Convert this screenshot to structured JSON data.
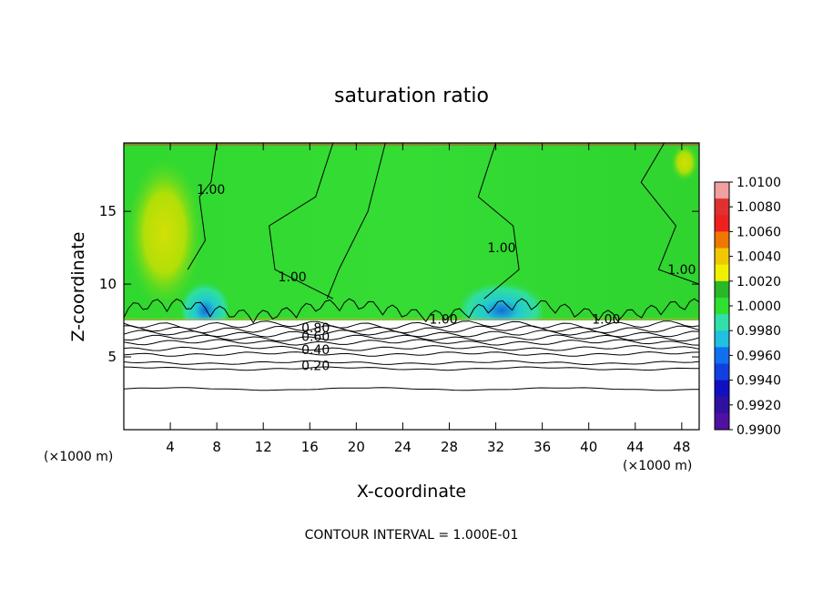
{
  "chart_data": {
    "type": "heatmap",
    "title": "saturation ratio",
    "xlabel": "X-coordinate",
    "ylabel": "Z-coordinate",
    "x_unit": "(×1000 m)",
    "x_unit_right": "(×1000 m)",
    "footer": "CONTOUR INTERVAL = 1.000E-01",
    "xlim": [
      0,
      49.5
    ],
    "ylim": [
      0,
      19.7
    ],
    "x_ticks": [
      4,
      8,
      12,
      16,
      20,
      24,
      28,
      32,
      36,
      40,
      44,
      48
    ],
    "y_ticks": [
      5,
      10,
      15
    ],
    "colorbar": {
      "labels": [
        "1.0100",
        "1.0080",
        "1.0060",
        "1.0040",
        "1.0020",
        "1.0000",
        "0.9980",
        "0.9960",
        "0.9940",
        "0.9920",
        "0.9900"
      ],
      "colors": [
        "#f0a0a0",
        "#e03030",
        "#f02020",
        "#f07800",
        "#f0c800",
        "#f0f000",
        "#28b828",
        "#30e030",
        "#30e0a8",
        "#20c0e0",
        "#1070f0",
        "#1040e0",
        "#1010c0",
        "#3010a0",
        "#5010a0"
      ]
    },
    "field": {
      "lower_clear_region_top_z": 7.5,
      "upper_region_value": 1.0,
      "high_value_zones": [
        {
          "x_from": 0,
          "x_to": 7,
          "z_from": 8,
          "z_to": 19
        },
        {
          "x_from": 47,
          "x_to": 49.5,
          "z_from": 17,
          "z_to": 19.7
        }
      ],
      "low_value_zones": [
        {
          "x_from": 5,
          "x_to": 9,
          "z_from": 7.5,
          "z_to": 11
        },
        {
          "x_from": 29,
          "x_to": 36,
          "z_from": 7.5,
          "z_to": 11
        }
      ]
    },
    "contour_labels": [
      {
        "text": "1.00",
        "x": 7.5,
        "z": 16.5
      },
      {
        "text": "1.00",
        "x": 14.5,
        "z": 10.5
      },
      {
        "text": "1.00",
        "x": 27.5,
        "z": 7.6
      },
      {
        "text": "1.00",
        "x": 32.5,
        "z": 12.5
      },
      {
        "text": "1.00",
        "x": 41.5,
        "z": 7.6
      },
      {
        "text": "1.00",
        "x": 48.0,
        "z": 11.0
      },
      {
        "text": "0.80",
        "x": 16.5,
        "z": 7.0
      },
      {
        "text": "0.60",
        "x": 16.5,
        "z": 6.4
      },
      {
        "text": "0.40",
        "x": 16.5,
        "z": 5.5
      },
      {
        "text": "0.20",
        "x": 16.5,
        "z": 4.4
      }
    ],
    "contour_lines_z": [
      2.8,
      4.2,
      4.6,
      5.2,
      5.6,
      6.0,
      6.3,
      6.6,
      6.9,
      7.2
    ]
  }
}
